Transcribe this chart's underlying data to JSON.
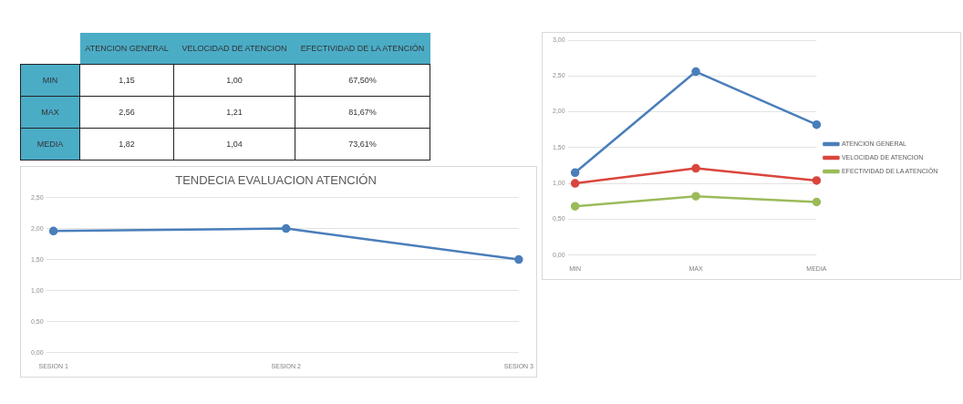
{
  "chart_data": [
    {
      "type": "other",
      "annotations": [
        "ATENCION GENERAL",
        "VELOCIDAD DE ATENCION",
        "EFECTIVIDAD DE LA ATENCIÓN",
        "MIN",
        "1,15",
        "1,00",
        "67,50%",
        "MAX",
        "2,56",
        "1,21",
        "81,67%",
        "MEDIA",
        "1,82",
        "1,04",
        "73,61%"
      ]
    },
    {
      "type": "line",
      "categories": [
        "MIN",
        "MAX",
        "MEDIA"
      ],
      "series": [
        {
          "name": "ATENCION GENERAL",
          "color": "#4a7ebb",
          "values": [
            1.15,
            2.56,
            1.82
          ]
        },
        {
          "name": "VELOCIDAD DE ATENCION",
          "color": "#d9463e",
          "values": [
            1.0,
            1.21,
            1.04
          ]
        },
        {
          "name": "EFECTIVIDAD DE LA ATENCIÓN",
          "color": "#9bbb59",
          "values": [
            0.68,
            0.82,
            0.74
          ]
        }
      ],
      "ylim": [
        0,
        3
      ],
      "yticks": [
        {
          "value": 0,
          "label": "0,00"
        },
        {
          "value": 0.5,
          "label": "0,50"
        },
        {
          "value": 1,
          "label": "1,00"
        },
        {
          "value": 1.5,
          "label": "1,50"
        },
        {
          "value": 2,
          "label": "2,00"
        },
        {
          "value": 2.5,
          "label": "2,50"
        },
        {
          "value": 3,
          "label": "3,00"
        }
      ],
      "grid": "y",
      "legend": "right",
      "marker": "circle",
      "line_style": "solid"
    },
    {
      "type": "line",
      "title": "TENDECIA EVALUACION ATENCIÓN",
      "categories": [
        "SESION 1",
        "SESION 2",
        "SESION 3"
      ],
      "series": [
        {
          "color": "#4a7ebb",
          "values": [
            1.96,
            2.0,
            1.5
          ]
        }
      ],
      "ylim": [
        0,
        2.5
      ],
      "yticks": [
        {
          "value": 0,
          "label": "0,00"
        },
        {
          "value": 0.5,
          "label": "0,50"
        },
        {
          "value": 1,
          "label": "1,00"
        },
        {
          "value": 1.5,
          "label": "1,50"
        },
        {
          "value": 2,
          "label": "2,00"
        },
        {
          "value": 2.5,
          "label": "2,50"
        }
      ],
      "grid": "y",
      "marker": "circle",
      "line_style": "solid"
    }
  ]
}
